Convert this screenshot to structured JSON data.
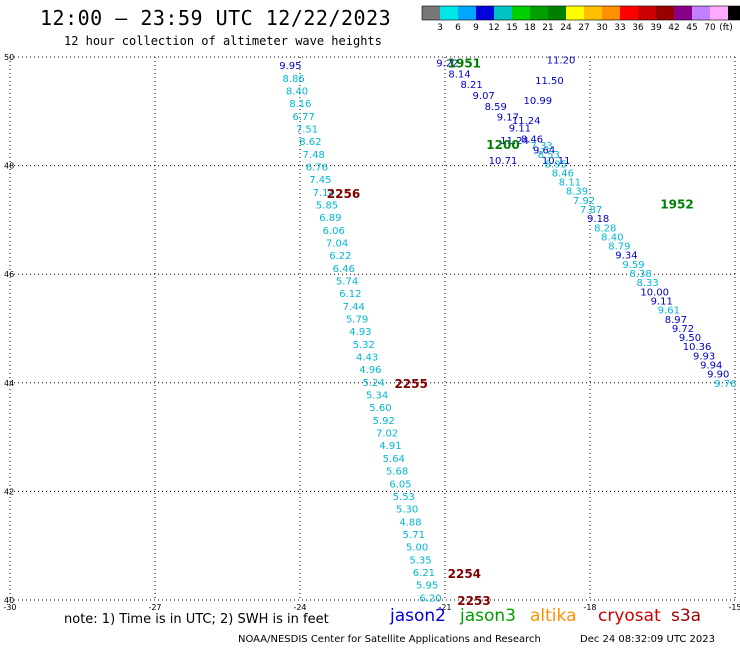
{
  "header": {
    "title": "12:00 – 23:59 UTC 12/22/2023",
    "subtitle": "12 hour collection of altimeter wave heights"
  },
  "colorbar": {
    "labels": [
      "3",
      "6",
      "9",
      "12",
      "15",
      "18",
      "21",
      "24",
      "27",
      "30",
      "33",
      "36",
      "39",
      "42",
      "45",
      "70"
    ],
    "unit": "(ft)",
    "colors": [
      "#777777",
      "#00e5e5",
      "#00a6ff",
      "#0000dd",
      "#00c4c4",
      "#00d000",
      "#00a000",
      "#008000",
      "#ffff00",
      "#ffc000",
      "#ff9000",
      "#ff0000",
      "#cc0000",
      "#990000",
      "#880088",
      "#c080ff",
      "#ffaaff",
      "#000000"
    ]
  },
  "axes": {
    "lon_ticks": [
      "-30",
      "-27",
      "-24",
      "-21",
      "-18",
      "-15"
    ],
    "lat_ticks": [
      "50",
      "48",
      "46",
      "44",
      "42",
      "40"
    ],
    "lon_range": [
      -30,
      -15
    ],
    "lat_range": [
      40,
      50
    ],
    "grid": "dotted"
  },
  "tracks": [
    {
      "mission": "jason3",
      "color": "#00b8d0",
      "start": [
        -24.2,
        49.85
      ],
      "end": [
        -21.3,
        40.05
      ],
      "values": [
        "9.95",
        "8.86",
        "8.40",
        "8.16",
        "6.77",
        "7.51",
        "8.62",
        "7.48",
        "6.76",
        "7.45",
        "7.14",
        "5.85",
        "6.89",
        "6.06",
        "7.04",
        "6.22",
        "6.46",
        "5.74",
        "6.12",
        "7.44",
        "5.79",
        "4.93",
        "5.32",
        "4.43",
        "4.96",
        "5.24",
        "5.34",
        "5.60",
        "5.92",
        "7.02",
        "4.91",
        "5.64",
        "5.68",
        "6.05",
        "5.53",
        "5.30",
        "4.88",
        "5.71",
        "5.00",
        "5.35",
        "6.21",
        "5.95",
        "6.20"
      ],
      "value_colors": {
        "0": "#0000cc"
      }
    },
    {
      "mission": "jason2",
      "color": "#0000cc",
      "start": [
        -20.95,
        49.9
      ],
      "end": [
        -18.7,
        48.1
      ],
      "values": [
        "9.22",
        "8.14",
        "8.21",
        "9.07",
        "8.59",
        "9.17",
        "9.11",
        "8.46",
        "9.64",
        "10.11"
      ]
    },
    {
      "mission": "jason2",
      "color": "#0000cc",
      "start": [
        -18.6,
        49.95
      ],
      "end": [
        -19.8,
        48.1
      ],
      "values": [
        "11.20",
        "11.50",
        "10.99",
        "11.24",
        "11.24",
        "10.71"
      ]
    },
    {
      "mission": "jason3",
      "color": "#00b8d0",
      "start": [
        -19.0,
        48.38
      ],
      "end": [
        -15.2,
        44.0
      ],
      "values": [
        "7.33",
        "8.53",
        "8.95",
        "8.46",
        "8.11",
        "8.39",
        "7.92",
        "7.87",
        "9.18",
        "8.28",
        "8.40",
        "8.79",
        "9.34",
        "9.59",
        "8.38",
        "8.33",
        "10.00",
        "9.11",
        "9.61",
        "8.97",
        "9.72",
        "9.50",
        "10.36",
        "9.93",
        "9.94",
        "9.90",
        "9.76"
      ],
      "value_colors": {
        "8": "#0000cc",
        "12": "#0000cc",
        "16": "#0000cc",
        "17": "#0000cc",
        "19": "#0000cc",
        "20": "#0000cc",
        "21": "#0000cc",
        "22": "#0000cc",
        "23": "#0000cc",
        "24": "#0000cc",
        "25": "#0000cc"
      }
    }
  ],
  "time_labels": [
    {
      "text": "1951",
      "color": "#008000",
      "lon": -20.6,
      "lat": 49.9
    },
    {
      "text": "1200",
      "color": "#008000",
      "lon": -19.8,
      "lat": 48.4
    },
    {
      "text": "1952",
      "color": "#008000",
      "lon": -16.2,
      "lat": 47.3
    },
    {
      "text": "2256",
      "color": "#800000",
      "lon": -23.1,
      "lat": 47.5
    },
    {
      "text": "2255",
      "color": "#800000",
      "lon": -21.7,
      "lat": 44.0
    },
    {
      "text": "2254",
      "color": "#800000",
      "lon": -20.6,
      "lat": 40.5
    },
    {
      "text": "2253",
      "color": "#800000",
      "lon": -20.4,
      "lat": 40.0
    }
  ],
  "footer": {
    "note": "note: 1) Time is in UTC; 2) SWH is in feet",
    "missions": [
      {
        "name": "jason2",
        "color": "#0000dd"
      },
      {
        "name": "jason3",
        "color": "#00a000"
      },
      {
        "name": "altika",
        "color": "#ff9000"
      },
      {
        "name": "cryosat",
        "color": "#cc0000"
      },
      {
        "name": "s3a",
        "color": "#990000"
      }
    ],
    "credit": "NOAA/NESDIS Center for Satellite Applications and Research",
    "timestamp": "Dec 24 08:32:09 UTC 2023"
  }
}
